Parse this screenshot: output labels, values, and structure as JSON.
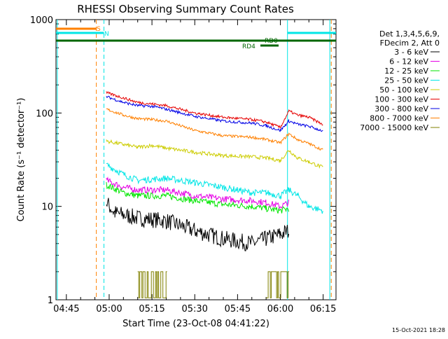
{
  "chart_data": {
    "type": "line",
    "title": "RHESSI Observing Summary Count Rates",
    "xlabel": "Start Time (23-Oct-08 04:41:22)",
    "ylabel": "Count Rate (s⁻¹ detector⁻¹)",
    "yscale": "log",
    "ylim": [
      1,
      1000
    ],
    "xlim": [
      "04:41:22",
      "06:19:30"
    ],
    "x_ticks": [
      "04:45",
      "05:00",
      "05:15",
      "05:30",
      "05:45",
      "06:00",
      "06:15"
    ],
    "y_ticks": [
      "1",
      "10",
      "100",
      "1000"
    ],
    "grid": false,
    "legend": {
      "position": "right",
      "header": [
        "Det 1,3,4,5,6,9,",
        "FDecim 2, Att 0"
      ],
      "entries": [
        "3 - 6 keV",
        "6 - 12 keV",
        "12 - 25 keV",
        "25 - 50 keV",
        "50 - 100 keV",
        "100 - 300 keV",
        "300 - 800 keV",
        "800 - 7000 keV",
        "7000 - 15000 keV"
      ]
    },
    "colors": {
      "3 - 6 keV": "#000000",
      "6 - 12 keV": "#e600e6",
      "12 - 25 keV": "#00e600",
      "25 - 50 keV": "#00e6e6",
      "50 - 100 keV": "#cccc00",
      "100 - 300 keV": "#e60000",
      "300 - 800 keV": "#0000e6",
      "800 - 7000 keV": "#ff8000",
      "7000 - 15000 keV": "#808000"
    },
    "series": [
      {
        "name": "3 - 6 keV",
        "x": [
          "04:59",
          "05:02",
          "05:10",
          "05:20",
          "05:30",
          "05:40",
          "05:50",
          "05:55",
          "06:00",
          "06:03"
        ],
        "values": [
          11,
          8.5,
          7.5,
          7,
          5.5,
          4.5,
          4,
          4.5,
          5,
          5.5
        ]
      },
      {
        "name": "6 - 12 keV",
        "x": [
          "04:59",
          "05:05",
          "05:10",
          "05:20",
          "05:30",
          "05:40",
          "05:50",
          "05:55",
          "06:00",
          "06:03"
        ],
        "values": [
          19,
          16,
          15,
          15,
          13,
          12,
          11.5,
          11,
          10,
          11
        ]
      },
      {
        "name": "12 - 25 keV",
        "x": [
          "04:59",
          "05:05",
          "05:10",
          "05:20",
          "05:30",
          "05:40",
          "05:50",
          "05:55",
          "06:00",
          "06:03"
        ],
        "values": [
          17,
          14,
          13,
          13,
          11.5,
          10.5,
          10,
          9.5,
          9,
          9.5
        ]
      },
      {
        "name": "25 - 50 keV",
        "x": [
          "04:59",
          "05:05",
          "05:10",
          "05:20",
          "05:30",
          "05:40",
          "05:50",
          "05:55",
          "06:00",
          "06:03",
          "06:06",
          "06:10",
          "06:15"
        ],
        "values": [
          28,
          22,
          19,
          20,
          18,
          16,
          14,
          14,
          13,
          15,
          13,
          10,
          9
        ]
      },
      {
        "name": "50 - 100 keV",
        "x": [
          "04:59",
          "05:05",
          "05:10",
          "05:15",
          "05:20",
          "05:30",
          "05:40",
          "05:50",
          "05:55",
          "06:00",
          "06:03",
          "06:06",
          "06:10",
          "06:15"
        ],
        "values": [
          50,
          46,
          43,
          45,
          42,
          38,
          35,
          34,
          33,
          31,
          40,
          33,
          30,
          26
        ]
      },
      {
        "name": "100 - 300 keV",
        "x": [
          "04:59",
          "05:05",
          "05:10",
          "05:15",
          "05:20",
          "05:30",
          "05:40",
          "05:50",
          "05:55",
          "06:00",
          "06:03",
          "06:06",
          "06:10",
          "06:15"
        ],
        "values": [
          165,
          145,
          130,
          125,
          120,
          100,
          90,
          85,
          80,
          70,
          105,
          95,
          90,
          75
        ]
      },
      {
        "name": "300 - 800 keV",
        "x": [
          "04:59",
          "05:05",
          "05:10",
          "05:15",
          "05:20",
          "05:30",
          "05:40",
          "05:50",
          "05:55",
          "06:00",
          "06:03",
          "06:06",
          "06:10",
          "06:15"
        ],
        "values": [
          150,
          130,
          120,
          118,
          110,
          92,
          82,
          78,
          73,
          65,
          82,
          76,
          72,
          64
        ]
      },
      {
        "name": "800 - 7000 keV",
        "x": [
          "04:59",
          "05:05",
          "05:10",
          "05:15",
          "05:20",
          "05:30",
          "05:40",
          "05:50",
          "05:55",
          "06:00",
          "06:03",
          "06:06",
          "06:10",
          "06:15"
        ],
        "values": [
          110,
          95,
          87,
          85,
          82,
          65,
          57,
          55,
          52,
          48,
          60,
          52,
          47,
          40
        ]
      },
      {
        "name": "7000 - 15000 keV",
        "x": [
          "05:10",
          "05:20",
          "05:55",
          "06:03"
        ],
        "values": [
          2,
          2,
          2,
          2
        ]
      }
    ],
    "annotations": [
      {
        "text": "S",
        "color": "#ff8000"
      },
      {
        "text": "N",
        "color": "#00e6e6"
      },
      {
        "text": "RD0",
        "color": "#006600"
      },
      {
        "text": "RD4",
        "color": "#006600"
      }
    ]
  },
  "footer": {
    "timestamp": "15-Oct-2021 18:28"
  }
}
